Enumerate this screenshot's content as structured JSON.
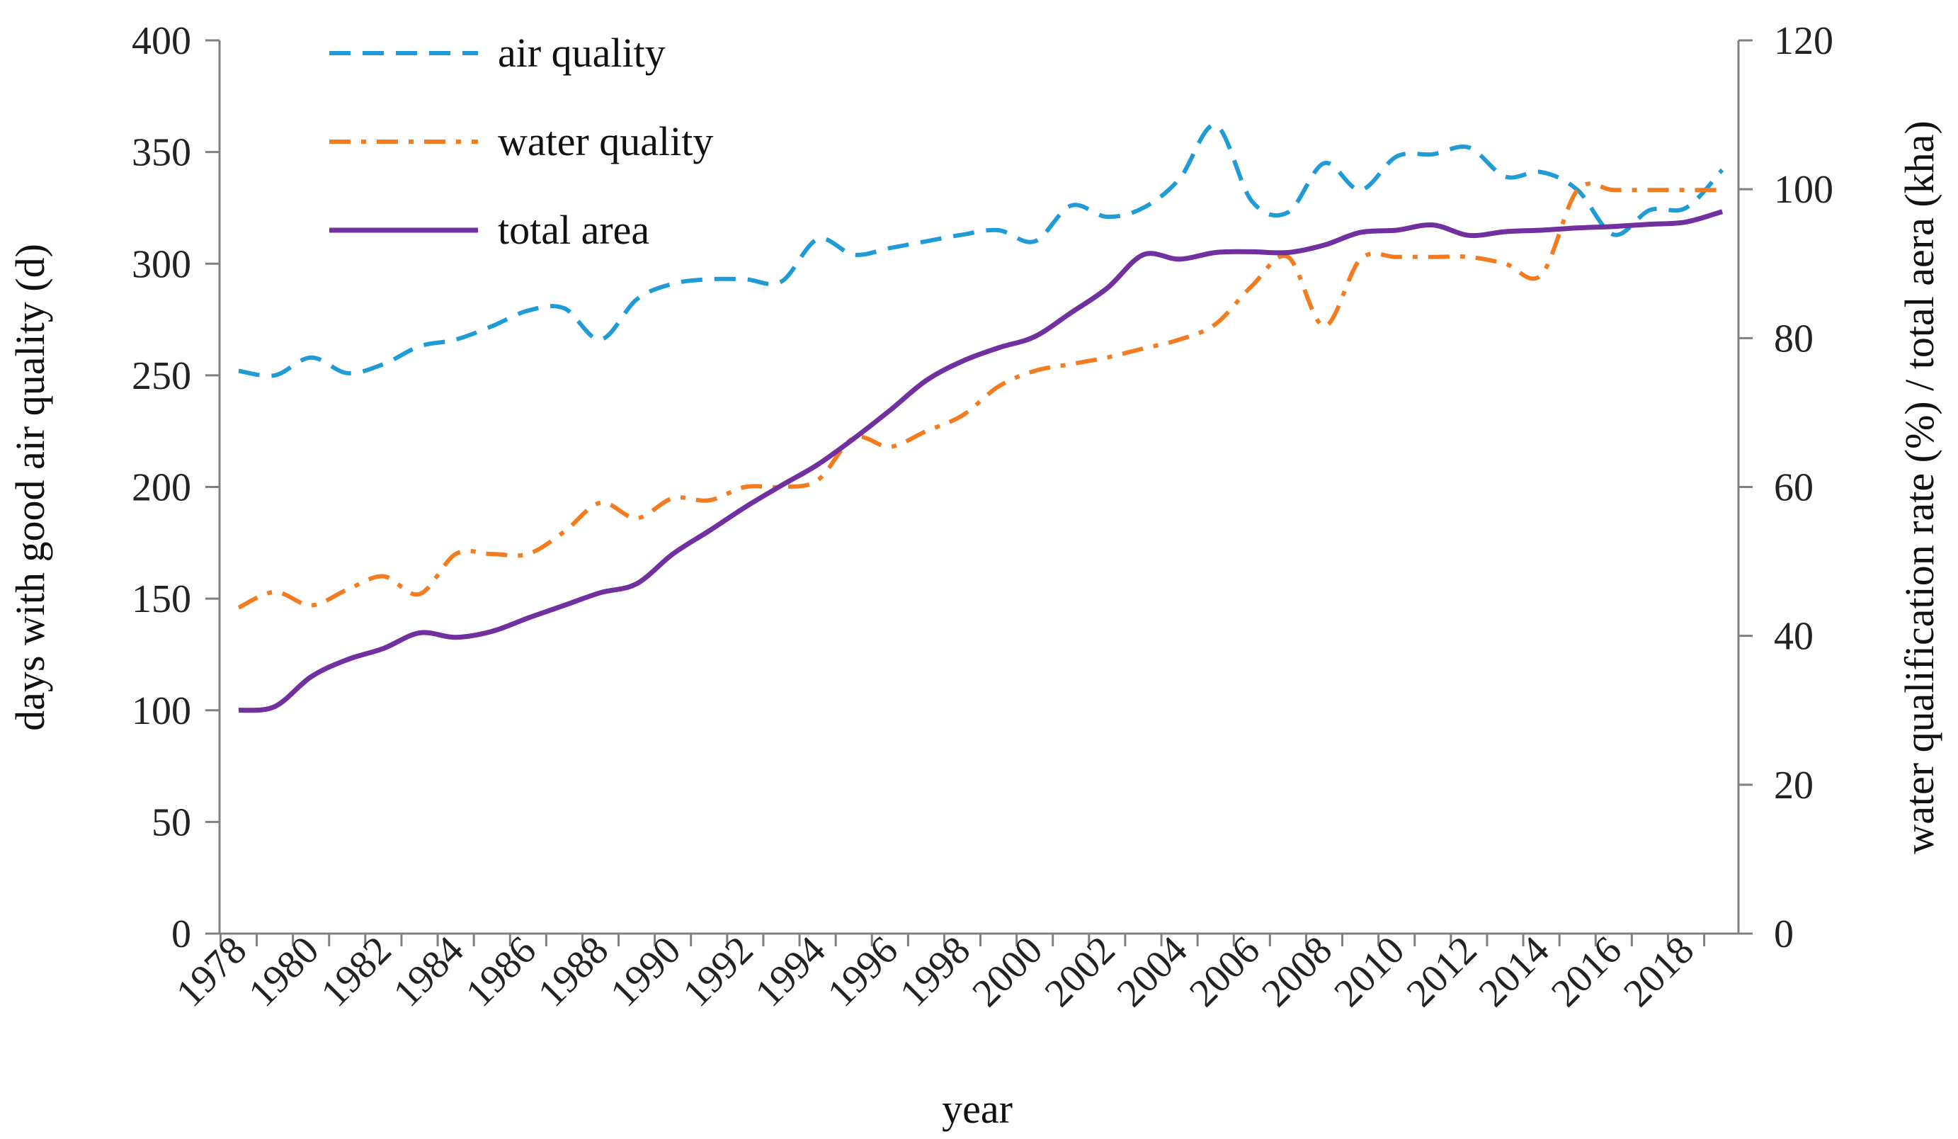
{
  "chart_data": {
    "type": "line",
    "title": "",
    "xlabel": "year",
    "ylabel_left": "days with good air quality (d)",
    "ylabel_right": "water qualification rate (%) / total aera (kha)",
    "ylim_left": [
      0,
      400
    ],
    "ylim_right": [
      0,
      120
    ],
    "yticks_left": [
      0,
      50,
      100,
      150,
      200,
      250,
      300,
      350,
      400
    ],
    "yticks_right": [
      0,
      20,
      40,
      60,
      80,
      100,
      120
    ],
    "grid": false,
    "legend_position": "top-left",
    "x": [
      1978,
      1979,
      1980,
      1981,
      1982,
      1983,
      1984,
      1985,
      1986,
      1987,
      1988,
      1989,
      1990,
      1991,
      1992,
      1993,
      1994,
      1995,
      1996,
      1997,
      1998,
      1999,
      2000,
      2001,
      2002,
      2003,
      2004,
      2005,
      2006,
      2007,
      2008,
      2009,
      2010,
      2011,
      2012,
      2013,
      2014,
      2015,
      2016,
      2017,
      2018,
      2019
    ],
    "xtick_labels": [
      "1978",
      "1980",
      "1982",
      "1984",
      "1986",
      "1988",
      "1990",
      "1992",
      "1994",
      "1996",
      "1998",
      "2000",
      "2002",
      "2004",
      "2006",
      "2008",
      "2010",
      "2012",
      "2014",
      "2016",
      "2018"
    ],
    "series": [
      {
        "name": "air quality",
        "axis": "left",
        "color": "#1f9bd7",
        "style": "dashed",
        "values": [
          252,
          250,
          258,
          251,
          255,
          263,
          266,
          272,
          279,
          280,
          266,
          284,
          291,
          293,
          293,
          292,
          311,
          304,
          307,
          310,
          313,
          315,
          310,
          326,
          321,
          325,
          338,
          362,
          328,
          323,
          345,
          333,
          348,
          349,
          352,
          339,
          341,
          333,
          313,
          324,
          325,
          342
        ]
      },
      {
        "name": "water quality",
        "axis": "left",
        "color": "#f47c20",
        "style": "dashdot",
        "values": [
          146,
          153,
          147,
          154,
          160,
          152,
          170,
          170,
          170,
          180,
          193,
          186,
          195,
          194,
          200,
          200,
          203,
          222,
          218,
          225,
          232,
          245,
          252,
          255,
          258,
          262,
          266,
          273,
          290,
          303,
          272,
          302,
          303,
          303,
          303,
          300,
          295,
          333,
          333,
          333,
          333,
          333
        ]
      },
      {
        "name": "total area",
        "axis": "right",
        "color": "#7030a0",
        "style": "solid",
        "values": [
          30.0,
          30.5,
          34.5,
          36.8,
          38.3,
          40.4,
          39.8,
          40.6,
          42.4,
          44.1,
          45.8,
          47.0,
          51.0,
          54.1,
          57.3,
          60.2,
          63.0,
          66.5,
          70.3,
          74.3,
          76.9,
          78.7,
          80.2,
          83.4,
          86.7,
          91.2,
          90.6,
          91.5,
          91.6,
          91.5,
          92.5,
          94.2,
          94.5,
          95.2,
          93.8,
          94.3,
          94.5,
          94.8,
          95.0,
          95.3,
          95.6,
          97.0
        ]
      }
    ]
  }
}
